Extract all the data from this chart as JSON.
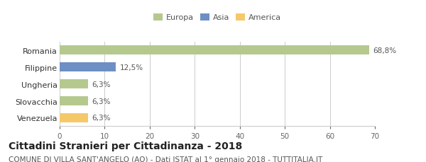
{
  "categories": [
    "Romania",
    "Filippine",
    "Ungheria",
    "Slovacchia",
    "Venezuela"
  ],
  "values": [
    68.8,
    12.5,
    6.3,
    6.3,
    6.3
  ],
  "labels": [
    "68,8%",
    "12,5%",
    "6,3%",
    "6,3%",
    "6,3%"
  ],
  "colors": [
    "#b5c98e",
    "#6e8fc4",
    "#b5c98e",
    "#b5c98e",
    "#f5c96a"
  ],
  "legend": [
    {
      "label": "Europa",
      "color": "#b5c98e"
    },
    {
      "label": "Asia",
      "color": "#6e8fc4"
    },
    {
      "label": "America",
      "color": "#f5c96a"
    }
  ],
  "xlim": [
    0,
    70
  ],
  "xticks": [
    0,
    10,
    20,
    30,
    40,
    50,
    60,
    70
  ],
  "title": "Cittadini Stranieri per Cittadinanza - 2018",
  "subtitle": "COMUNE DI VILLA SANT'ANGELO (AQ) - Dati ISTAT al 1° gennaio 2018 - TUTTITALIA.IT",
  "title_fontsize": 10,
  "subtitle_fontsize": 7.5,
  "background_color": "#ffffff",
  "bar_height": 0.55,
  "grid_color": "#cccccc"
}
